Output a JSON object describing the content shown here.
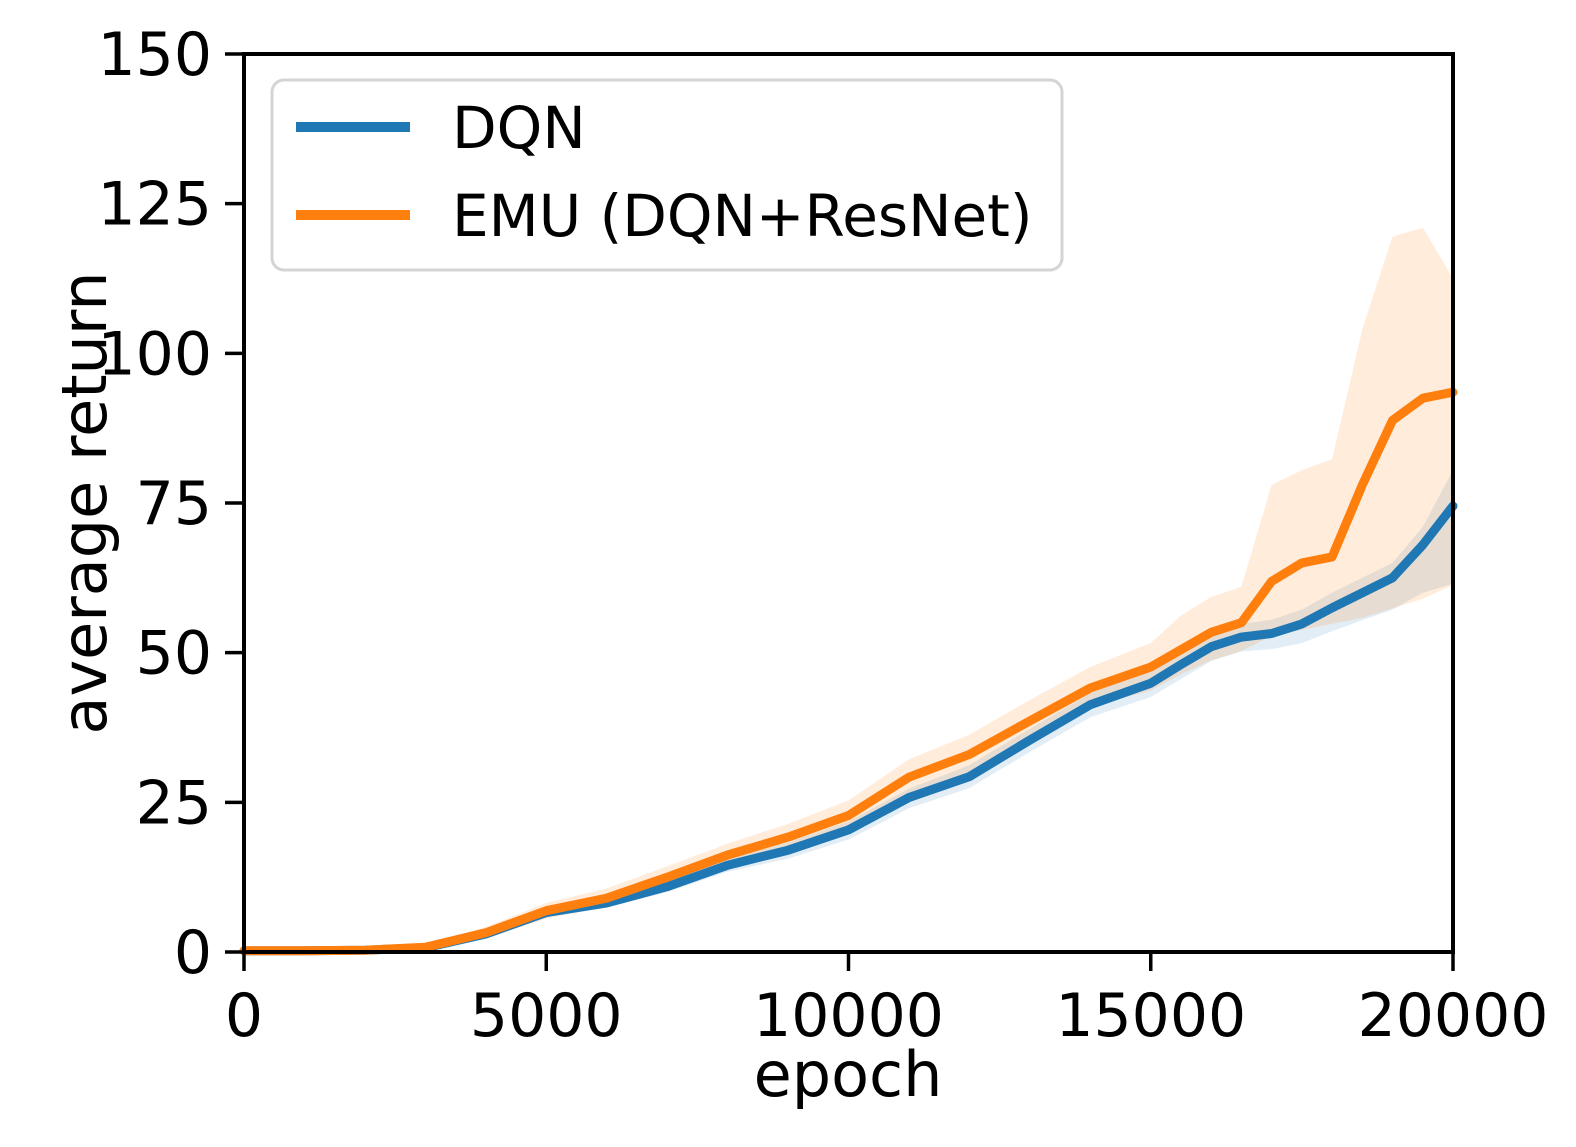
{
  "figure": {
    "background": "#ffffff",
    "axis_color": "#000000",
    "legend_border_color": "#d4d4d4"
  },
  "chart_data": {
    "type": "line",
    "title": "",
    "xlabel": "epoch",
    "ylabel": "average return",
    "xlim": [
      0,
      20000
    ],
    "ylim": [
      0,
      150
    ],
    "xticks": [
      0,
      5000,
      10000,
      15000,
      20000
    ],
    "yticks": [
      0,
      25,
      50,
      75,
      100,
      125,
      150
    ],
    "grid": false,
    "legend_position": "upper left",
    "x": [
      0,
      1000,
      2000,
      3000,
      4000,
      5000,
      6000,
      7000,
      8000,
      9000,
      10000,
      11000,
      12000,
      13000,
      14000,
      15000,
      15500,
      16000,
      16500,
      17000,
      17500,
      18000,
      18500,
      19000,
      19500,
      20000
    ],
    "series": [
      {
        "name": "DQN",
        "color": "#1f77b4",
        "band_alpha": 0.13,
        "values": [
          0.2,
          0.2,
          0.3,
          0.7,
          3.0,
          6.6,
          8.2,
          10.9,
          14.5,
          17.0,
          20.4,
          25.8,
          29.3,
          35.4,
          41.3,
          44.9,
          48.0,
          51.0,
          52.6,
          53.2,
          54.8,
          57.5,
          60.0,
          62.5,
          68.0,
          74.5
        ],
        "band_top": [
          0.4,
          0.4,
          0.5,
          1.0,
          3.6,
          7.3,
          9.0,
          11.8,
          15.5,
          18.3,
          21.8,
          27.3,
          31.2,
          37.3,
          43.2,
          47.2,
          50.2,
          53.2,
          54.8,
          55.5,
          57.2,
          60.0,
          62.5,
          65.0,
          71.0,
          80.5
        ],
        "band_bottom": [
          0.1,
          0.1,
          0.1,
          0.4,
          2.4,
          5.9,
          7.4,
          10.0,
          13.4,
          15.6,
          18.8,
          24.0,
          27.4,
          33.4,
          39.2,
          42.6,
          45.6,
          48.6,
          50.2,
          50.6,
          51.6,
          53.6,
          55.4,
          57.2,
          60.0,
          61.5
        ]
      },
      {
        "name": "EMU (DQN+ResNet)",
        "color": "#ff7f0e",
        "band_alpha": 0.15,
        "values": [
          0.2,
          0.2,
          0.3,
          0.8,
          3.2,
          6.9,
          9.0,
          12.5,
          16.2,
          19.2,
          22.8,
          29.2,
          33.0,
          38.6,
          44.1,
          47.6,
          50.5,
          53.4,
          55.0,
          61.9,
          65.0,
          66.0,
          78.0,
          88.8,
          92.5,
          93.5
        ],
        "band_top": [
          0.4,
          0.4,
          0.5,
          1.2,
          4.2,
          8.2,
          10.6,
          14.3,
          18.1,
          21.4,
          25.3,
          32.2,
          36.3,
          42.1,
          47.6,
          51.6,
          56.2,
          59.3,
          61.0,
          78.0,
          80.5,
          82.3,
          104.0,
          119.5,
          121.0,
          112.5
        ],
        "band_bottom": [
          0.1,
          0.1,
          0.1,
          0.4,
          2.2,
          5.6,
          7.5,
          10.8,
          14.3,
          17.1,
          20.4,
          26.4,
          30.0,
          35.4,
          40.9,
          43.7,
          46.4,
          48.7,
          50.3,
          52.8,
          53.8,
          54.8,
          55.8,
          57.4,
          59.0,
          61.3
        ]
      }
    ]
  }
}
